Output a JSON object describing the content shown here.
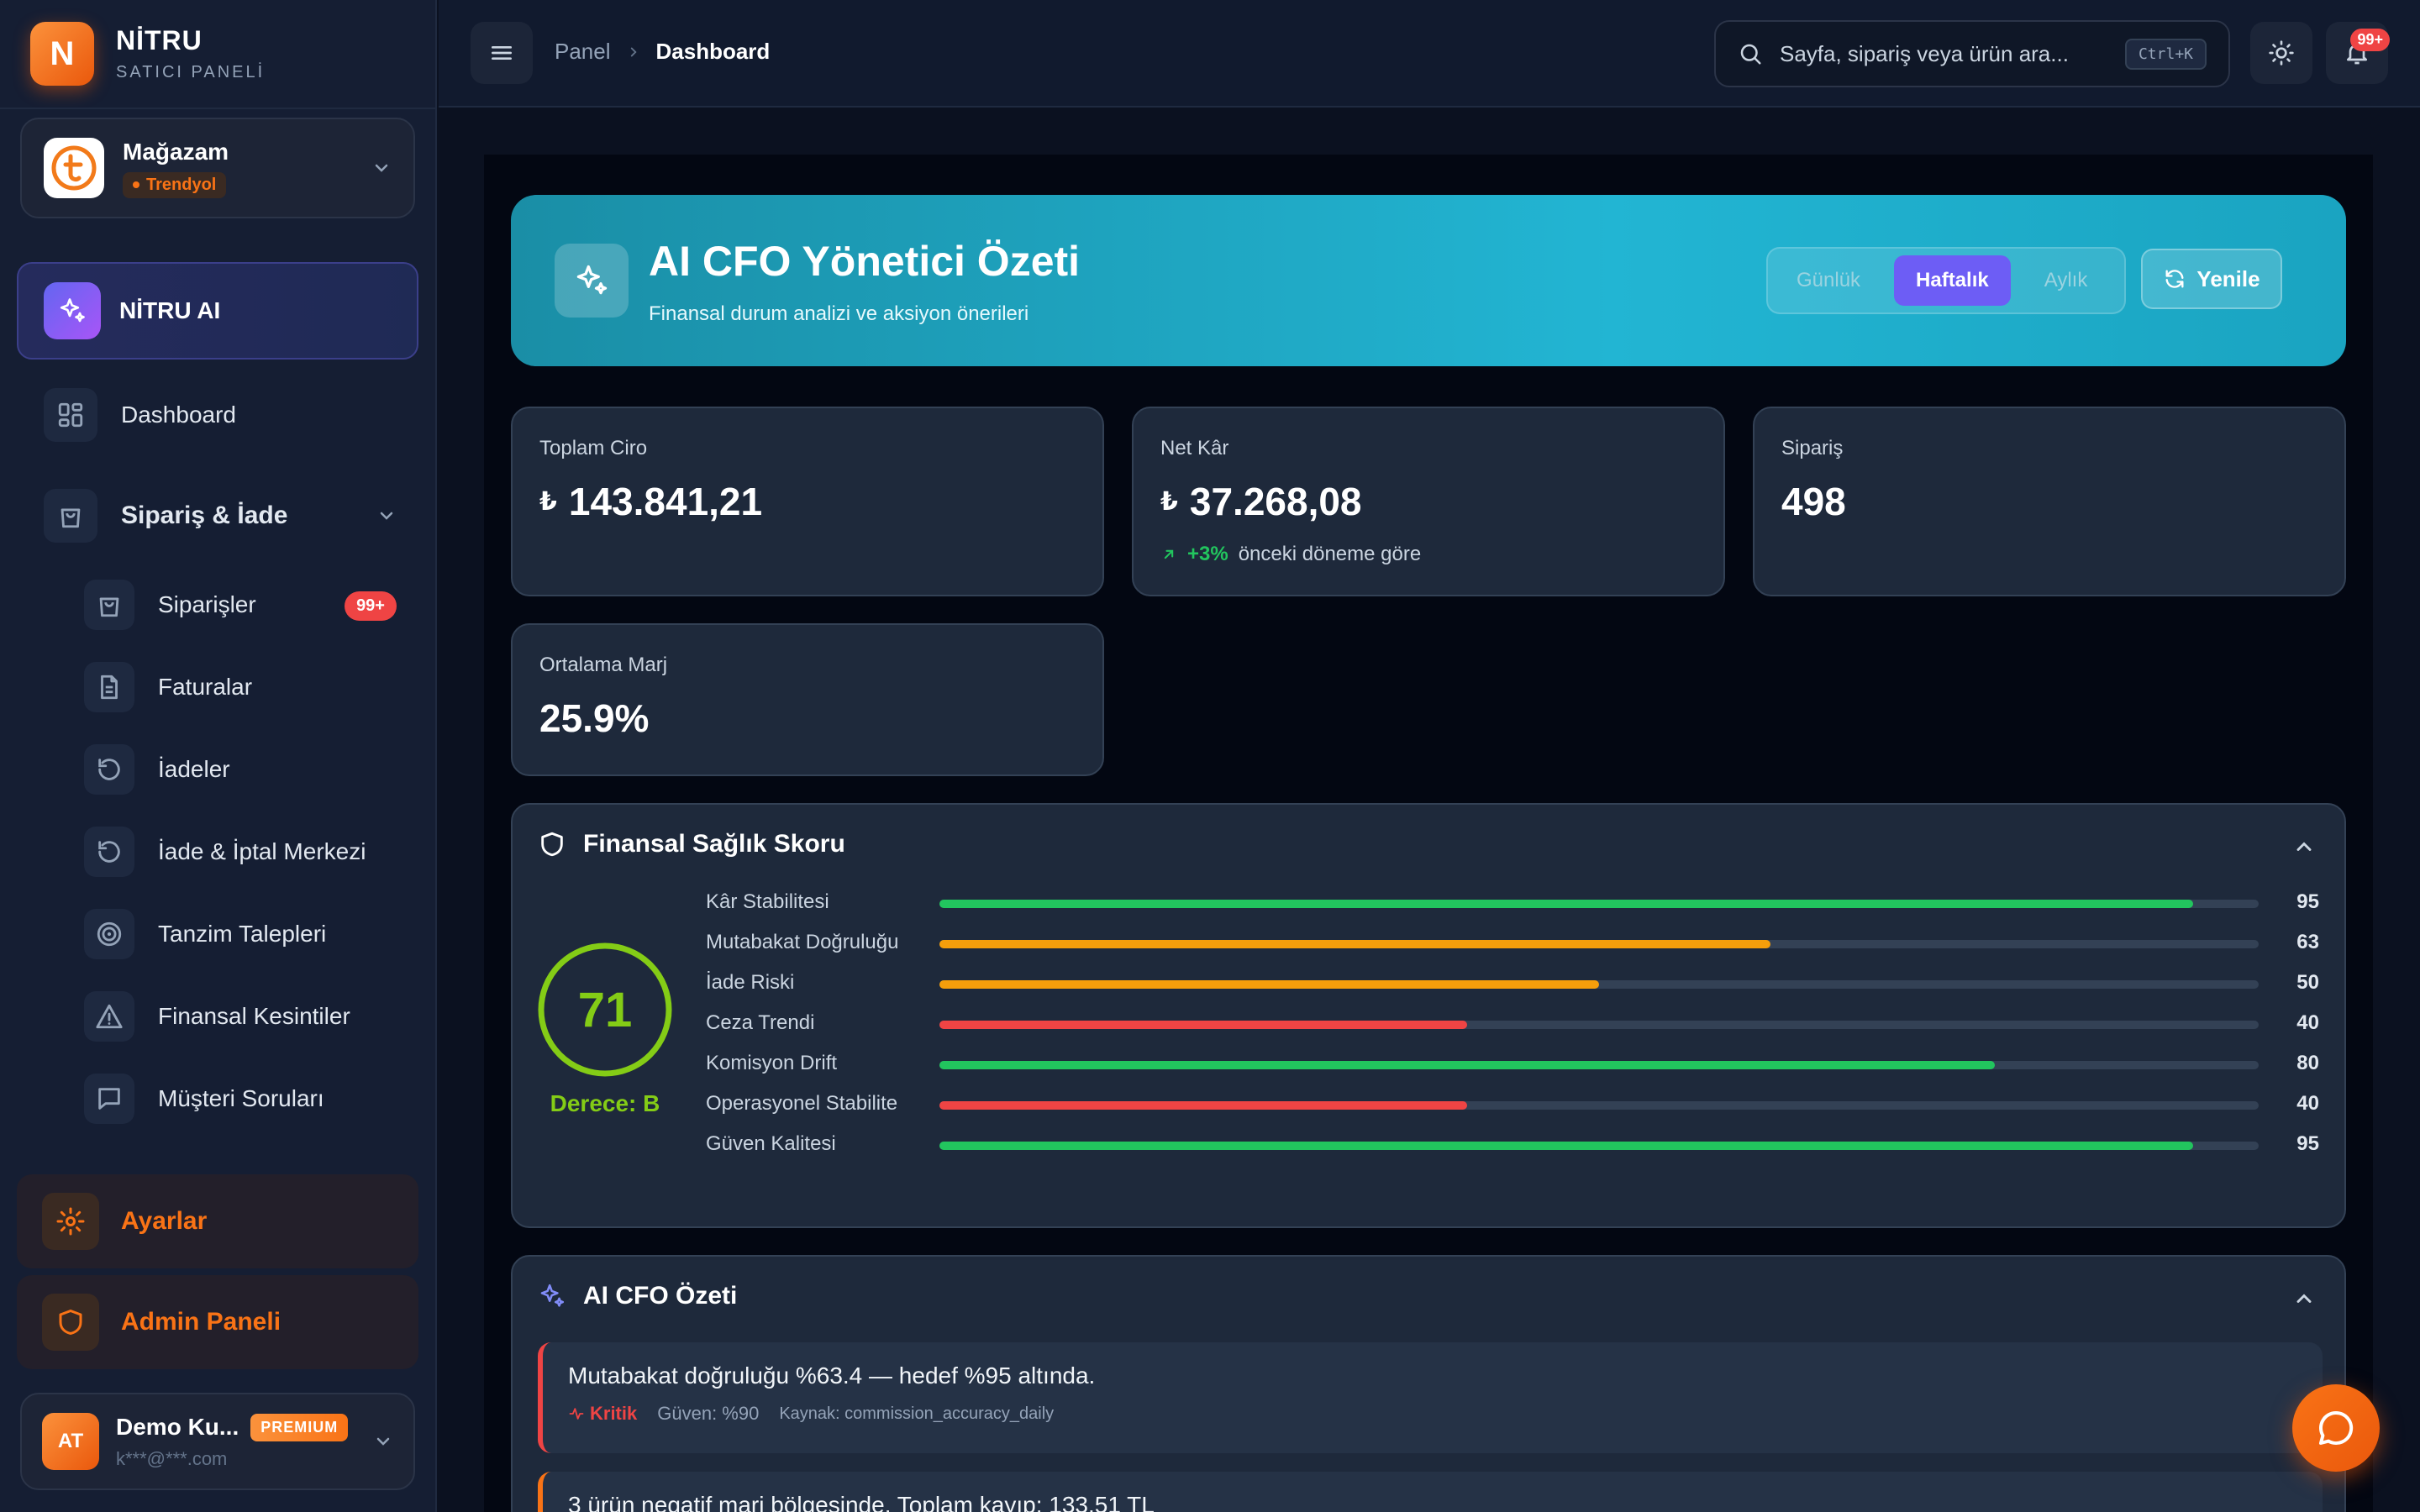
{
  "brand": {
    "title": "NİTRU",
    "subtitle": "SATICI PANELİ",
    "logo_letter": "N"
  },
  "store": {
    "name": "Mağazam",
    "marketplace": "Trendyol"
  },
  "sidebar": {
    "ai_item": "NİTRU AI",
    "dashboard": "Dashboard",
    "section": "Sipariş & İade",
    "sub_items": [
      {
        "label": "Siparişler",
        "badge": "99+",
        "icon": "shopping-bag-icon"
      },
      {
        "label": "Faturalar",
        "icon": "document-icon"
      },
      {
        "label": "İadeler",
        "icon": "return-icon"
      },
      {
        "label": "İade & İptal Merkezi",
        "icon": "return-icon"
      },
      {
        "label": "Tanzim Talepleri",
        "icon": "target-icon"
      },
      {
        "label": "Finansal Kesintiler",
        "icon": "warning-icon"
      },
      {
        "label": "Müşteri Soruları",
        "icon": "message-icon"
      }
    ],
    "settings": "Ayarlar",
    "admin": "Admin Paneli"
  },
  "user": {
    "initials": "AT",
    "name": "Demo Ku...",
    "plan": "PREMIUM",
    "email": "k***@***.com"
  },
  "header": {
    "breadcrumb": [
      "Panel",
      "Dashboard"
    ],
    "search_placeholder": "Sayfa, sipariş veya ürün ara...",
    "shortcut": "Ctrl+K",
    "notif_badge": "99+"
  },
  "hero": {
    "title": "AI CFO Yönetici Özeti",
    "subtitle": "Finansal durum analizi ve aksiyon önerileri",
    "periods": [
      "Günlük",
      "Haftalık",
      "Aylık"
    ],
    "active_period": "Haftalık",
    "refresh": "Yenile"
  },
  "kpis": {
    "revenue": {
      "label": "Toplam Ciro",
      "currency": "₺",
      "value": "143.841,21"
    },
    "profit": {
      "label": "Net Kâr",
      "currency": "₺",
      "value": "37.268,08",
      "trend": "+3%",
      "trend_note": "önceki döneme göre"
    },
    "orders": {
      "label": "Sipariş",
      "value": "498"
    },
    "margin": {
      "label": "Ortalama Marj",
      "value": "25.9%"
    }
  },
  "health": {
    "title": "Finansal Sağlık Skoru",
    "score": "71",
    "score_fraction": 0.71,
    "grade": "Derece: B",
    "colors": {
      "green": "#22c55e",
      "orange": "#f59e0b",
      "red": "#ef4444",
      "ring": "#84cc16"
    },
    "metrics": [
      {
        "name": "Kâr Stabilitesi",
        "value": 95,
        "color": "#22c55e"
      },
      {
        "name": "Mutabakat Doğruluğu",
        "value": 63,
        "color": "#f59e0b"
      },
      {
        "name": "İade Riski",
        "value": 50,
        "color": "#f59e0b"
      },
      {
        "name": "Ceza Trendi",
        "value": 40,
        "color": "#ef4444"
      },
      {
        "name": "Komisyon Drift",
        "value": 80,
        "color": "#22c55e"
      },
      {
        "name": "Operasyonel Stabilite",
        "value": 40,
        "color": "#ef4444"
      },
      {
        "name": "Güven Kalitesi",
        "value": 95,
        "color": "#22c55e"
      }
    ]
  },
  "summary": {
    "title": "AI CFO Özeti",
    "items": [
      {
        "text": "Mutabakat doğruluğu %63.4 — hedef %95 altında.",
        "severity": "Kritik",
        "confidence": "Güven: %90",
        "source": "Kaynak: commission_accuracy_daily"
      },
      {
        "text": "3 ürün negatif marj bölgesinde. Toplam kayıp: 133.51 TL"
      }
    ]
  }
}
